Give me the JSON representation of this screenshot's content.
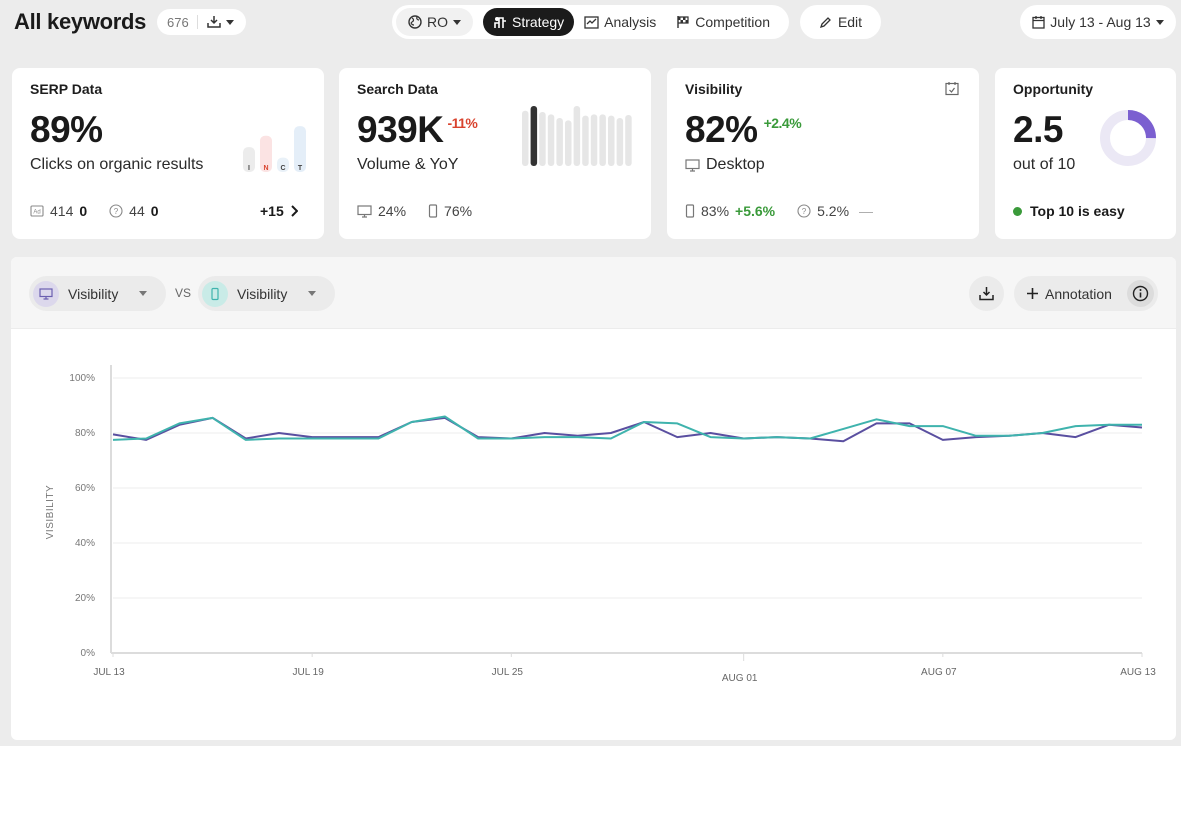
{
  "header": {
    "title": "All keywords",
    "keyword_count": "676",
    "country": "RO",
    "nav": [
      {
        "label": "Strategy",
        "icon": "strategy-icon",
        "active": true
      },
      {
        "label": "Analysis",
        "icon": "analysis-icon",
        "active": false
      },
      {
        "label": "Competition",
        "icon": "checkered-flag-icon",
        "active": false
      }
    ],
    "edit_label": "Edit",
    "date_range": "July 13 - Aug 13"
  },
  "cards": {
    "serp": {
      "title": "SERP Data",
      "value": "89%",
      "subtitle": "Clicks on organic results",
      "ads_count": "414",
      "ads_delta": "0",
      "paa_count": "44",
      "paa_delta": "0",
      "more": "+15",
      "intent_labels": [
        "I",
        "N",
        "C",
        "T"
      ],
      "intent_colors": [
        "#ececec",
        "#fbe3e3",
        "#e9f1f8",
        "#e4eef8"
      ],
      "intent_levels": [
        0.45,
        0.72,
        0.2,
        0.95
      ]
    },
    "search": {
      "title": "Search Data",
      "value": "939K",
      "delta": "-11%",
      "subtitle": "Volume & YoY",
      "desktop_share": "24%",
      "mobile_share": "76%",
      "volume_trend": [
        0.92,
        1.0,
        0.9,
        0.86,
        0.8,
        0.76,
        1.0,
        0.84,
        0.86,
        0.86,
        0.84,
        0.8,
        0.85
      ]
    },
    "visibility": {
      "title": "Visibility",
      "value": "82%",
      "delta": "+2.4%",
      "subtitle": "Desktop",
      "mobile_value": "83%",
      "mobile_delta": "+5.6%",
      "other_value": "5.2%",
      "other_delta": "—"
    },
    "opportunity": {
      "title": "Opportunity",
      "value": "2.5",
      "subtitle": "out of 10",
      "status": "Top 10 is easy",
      "score_fraction": 0.25,
      "accent": "#7b5fd0"
    }
  },
  "chart_controls": {
    "metric_a": "Visibility",
    "metric_b": "Visibility",
    "vs_label": "VS",
    "annotation_label": "Annotation"
  },
  "chart_data": {
    "type": "line",
    "ylabel": "VISIBILITY",
    "ylim": [
      0,
      100
    ],
    "y_ticks": [
      "0%",
      "20%",
      "40%",
      "60%",
      "80%",
      "100%"
    ],
    "x_tick_labels": [
      "JUL 13",
      "JUL 19",
      "JUL 25",
      "AUG 01",
      "AUG 07",
      "AUG 13"
    ],
    "x_tick_index": [
      0,
      6,
      12,
      19,
      25,
      31
    ],
    "series": [
      {
        "color": "#5a4fa0",
        "values": [
          79.5,
          77.5,
          83,
          85.5,
          78,
          80,
          78.5,
          78.5,
          78.5,
          84,
          85.5,
          78.5,
          78,
          80,
          79,
          80,
          84,
          78.5,
          80,
          78,
          78.5,
          78,
          77,
          83.5,
          83.5,
          77.5,
          78.5,
          79,
          80,
          78.5,
          83,
          82
        ]
      },
      {
        "color": "#3fb3ad",
        "values": [
          77.5,
          78,
          83.5,
          85.5,
          77.5,
          78,
          78,
          78,
          78,
          84,
          86,
          78,
          78,
          78.5,
          78.5,
          78,
          84,
          83.5,
          78.5,
          78,
          78.5,
          78,
          81.5,
          85,
          82.5,
          82.5,
          79,
          79,
          80,
          82.5,
          83,
          83
        ]
      }
    ]
  }
}
